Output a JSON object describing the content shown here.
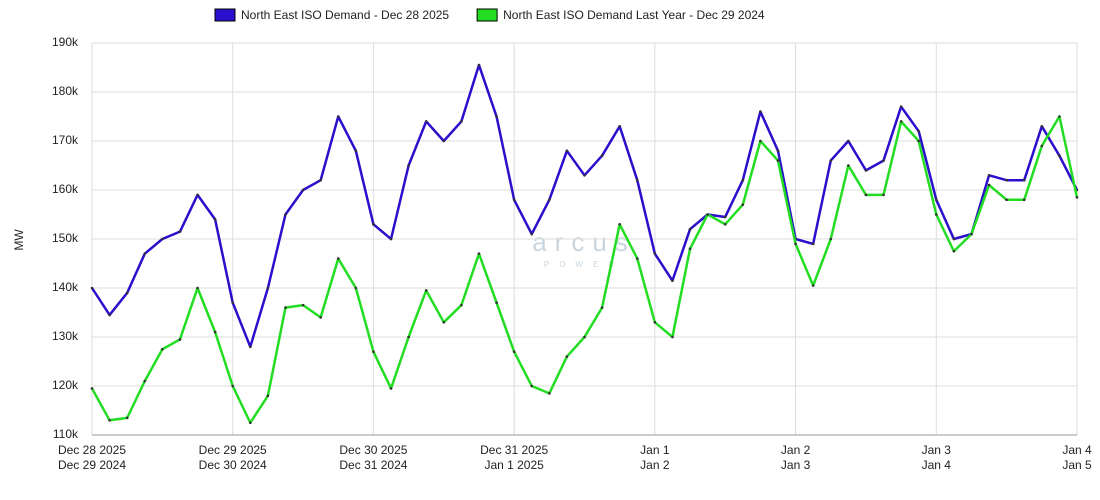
{
  "chart_data": {
    "type": "line",
    "y_label": "MW",
    "watermark": "arcus",
    "watermark_sub": "POWER",
    "xlim": [
      0,
      168
    ],
    "xticks": [
      {
        "value": 0,
        "label": "Dec 28 2025"
      },
      {
        "value": 24,
        "label": "Dec 29 2025"
      },
      {
        "value": 48,
        "label": "Dec 30 2025"
      },
      {
        "value": 72,
        "label": "Dec 31 2025"
      },
      {
        "value": 96,
        "label": "Jan 1"
      },
      {
        "value": 120,
        "label": "Jan 2"
      },
      {
        "value": 144,
        "label": "Jan 3"
      },
      {
        "value": 168,
        "label": "Jan 4"
      }
    ],
    "xtick_labels_last_year": [
      "Dec 29 2024",
      "Dec 30 2024",
      "Dec 31 2024",
      "Jan 1 2025",
      "Jan 2",
      "Jan 3",
      "Jan 4",
      "Jan 5"
    ],
    "ylim": [
      110000,
      190000
    ],
    "yticks": [
      {
        "value": 110000,
        "label": "110k"
      },
      {
        "value": 120000,
        "label": "120k"
      },
      {
        "value": 130000,
        "label": "130k"
      },
      {
        "value": 140000,
        "label": "140k"
      },
      {
        "value": 150000,
        "label": "150k"
      },
      {
        "value": 160000,
        "label": "160k"
      },
      {
        "value": 170000,
        "label": "170k"
      },
      {
        "value": 180000,
        "label": "180k"
      },
      {
        "value": 190000,
        "label": "190k"
      }
    ],
    "grid": true,
    "x": [
      0,
      3,
      6,
      9,
      12,
      15,
      18,
      21,
      24,
      27,
      30,
      33,
      36,
      39,
      42,
      45,
      48,
      51,
      54,
      57,
      60,
      63,
      66,
      69,
      72,
      75,
      78,
      81,
      84,
      87,
      90,
      93,
      96,
      99,
      102,
      105,
      108,
      111,
      114,
      117,
      120,
      123,
      126,
      129,
      132,
      135,
      138,
      141,
      144,
      147,
      150,
      153,
      156,
      159,
      162,
      165,
      168
    ],
    "series": [
      {
        "name": "North East ISO Demand - Dec 28 2025",
        "color": "#2a0fcc",
        "values": [
          140000,
          134500,
          139000,
          147000,
          150000,
          151500,
          159000,
          154000,
          137000,
          128000,
          140000,
          155000,
          160000,
          162000,
          175000,
          168000,
          153000,
          150000,
          165000,
          174000,
          170000,
          174000,
          185500,
          175000,
          158000,
          151000,
          158000,
          168000,
          163000,
          167000,
          173000,
          162000,
          147000,
          141500,
          152000,
          155000,
          154500,
          162000,
          176000,
          168000,
          150000,
          149000,
          166000,
          170000,
          164000,
          166000,
          177000,
          172000,
          158000,
          150000,
          151000,
          163000,
          162000,
          162000,
          173000,
          167000,
          160000
        ]
      },
      {
        "name": "North East ISO Demand Last Year - Dec 29 2024",
        "color": "#22dd22",
        "values": [
          119500,
          113000,
          113500,
          121000,
          127500,
          129500,
          140000,
          131000,
          120000,
          112500,
          118000,
          136000,
          136500,
          134000,
          146000,
          140000,
          127000,
          119500,
          130000,
          139500,
          133000,
          136500,
          147000,
          137000,
          127000,
          120000,
          118500,
          126000,
          130000,
          136000,
          153000,
          146000,
          133000,
          130000,
          148000,
          155000,
          153000,
          157000,
          170000,
          166000,
          149000,
          140500,
          150000,
          165000,
          159000,
          159000,
          174000,
          170000,
          155000,
          147500,
          151000,
          161000,
          158000,
          158000,
          169000,
          175000,
          158500
        ]
      }
    ]
  }
}
